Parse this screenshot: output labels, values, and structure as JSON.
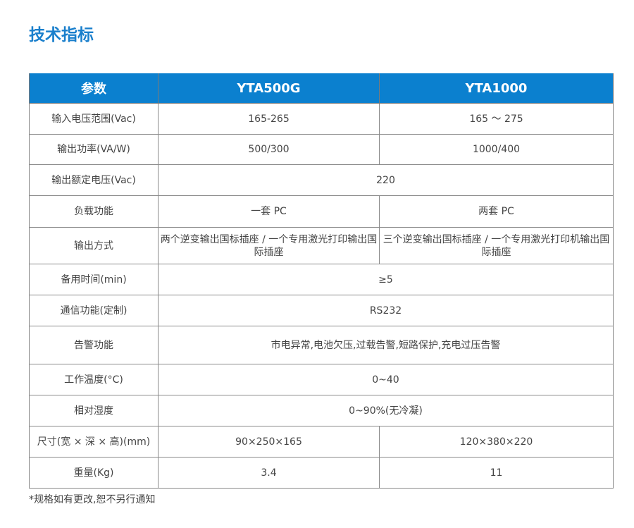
{
  "title": "技术指标",
  "headers": [
    "参数",
    "YTA500G",
    "YTA1000"
  ],
  "rows": [
    {
      "label": "输入电压范围(Vac)",
      "a": "165-265",
      "b": "165 ～ 275",
      "h": 44
    },
    {
      "label": "输出功率(VA/W)",
      "a": "500/300",
      "b": "1000/400",
      "h": 43
    },
    {
      "label": "输出额定电压(Vac)",
      "merged": "220",
      "h": 44
    },
    {
      "label": "负载功能",
      "a": "一套 PC",
      "b": "两套 PC",
      "h": 45
    },
    {
      "label": "输出方式",
      "a": "两个逆变输出国标插座 / 一个专用激光打印输出国际插座",
      "b": "三个逆变输出国标插座 / 一个专用激光打印机输出国际插座",
      "h": 52
    },
    {
      "label": "备用时间(min)",
      "merged": "≥5",
      "h": 44
    },
    {
      "label": "通信功能(定制)",
      "merged": "RS232",
      "h": 44
    },
    {
      "label": "告警功能",
      "merged": "市电异常,电池欠压,过载告警,短路保护,充电过压告警",
      "h": 54
    },
    {
      "label": "工作温度(°C)",
      "merged": "0~40",
      "h": 44
    },
    {
      "label": "相对湿度",
      "merged": "0~90%(无冷凝)",
      "h": 44
    },
    {
      "label": "尺寸(宽 × 深 × 高)(mm)",
      "a": "90×250×165",
      "b": "120×380×220",
      "h": 44
    },
    {
      "label": "重量(Kg)",
      "a": "3.4",
      "b": "11",
      "h": 44
    }
  ],
  "note": "*规格如有更改,恕不另行通知"
}
